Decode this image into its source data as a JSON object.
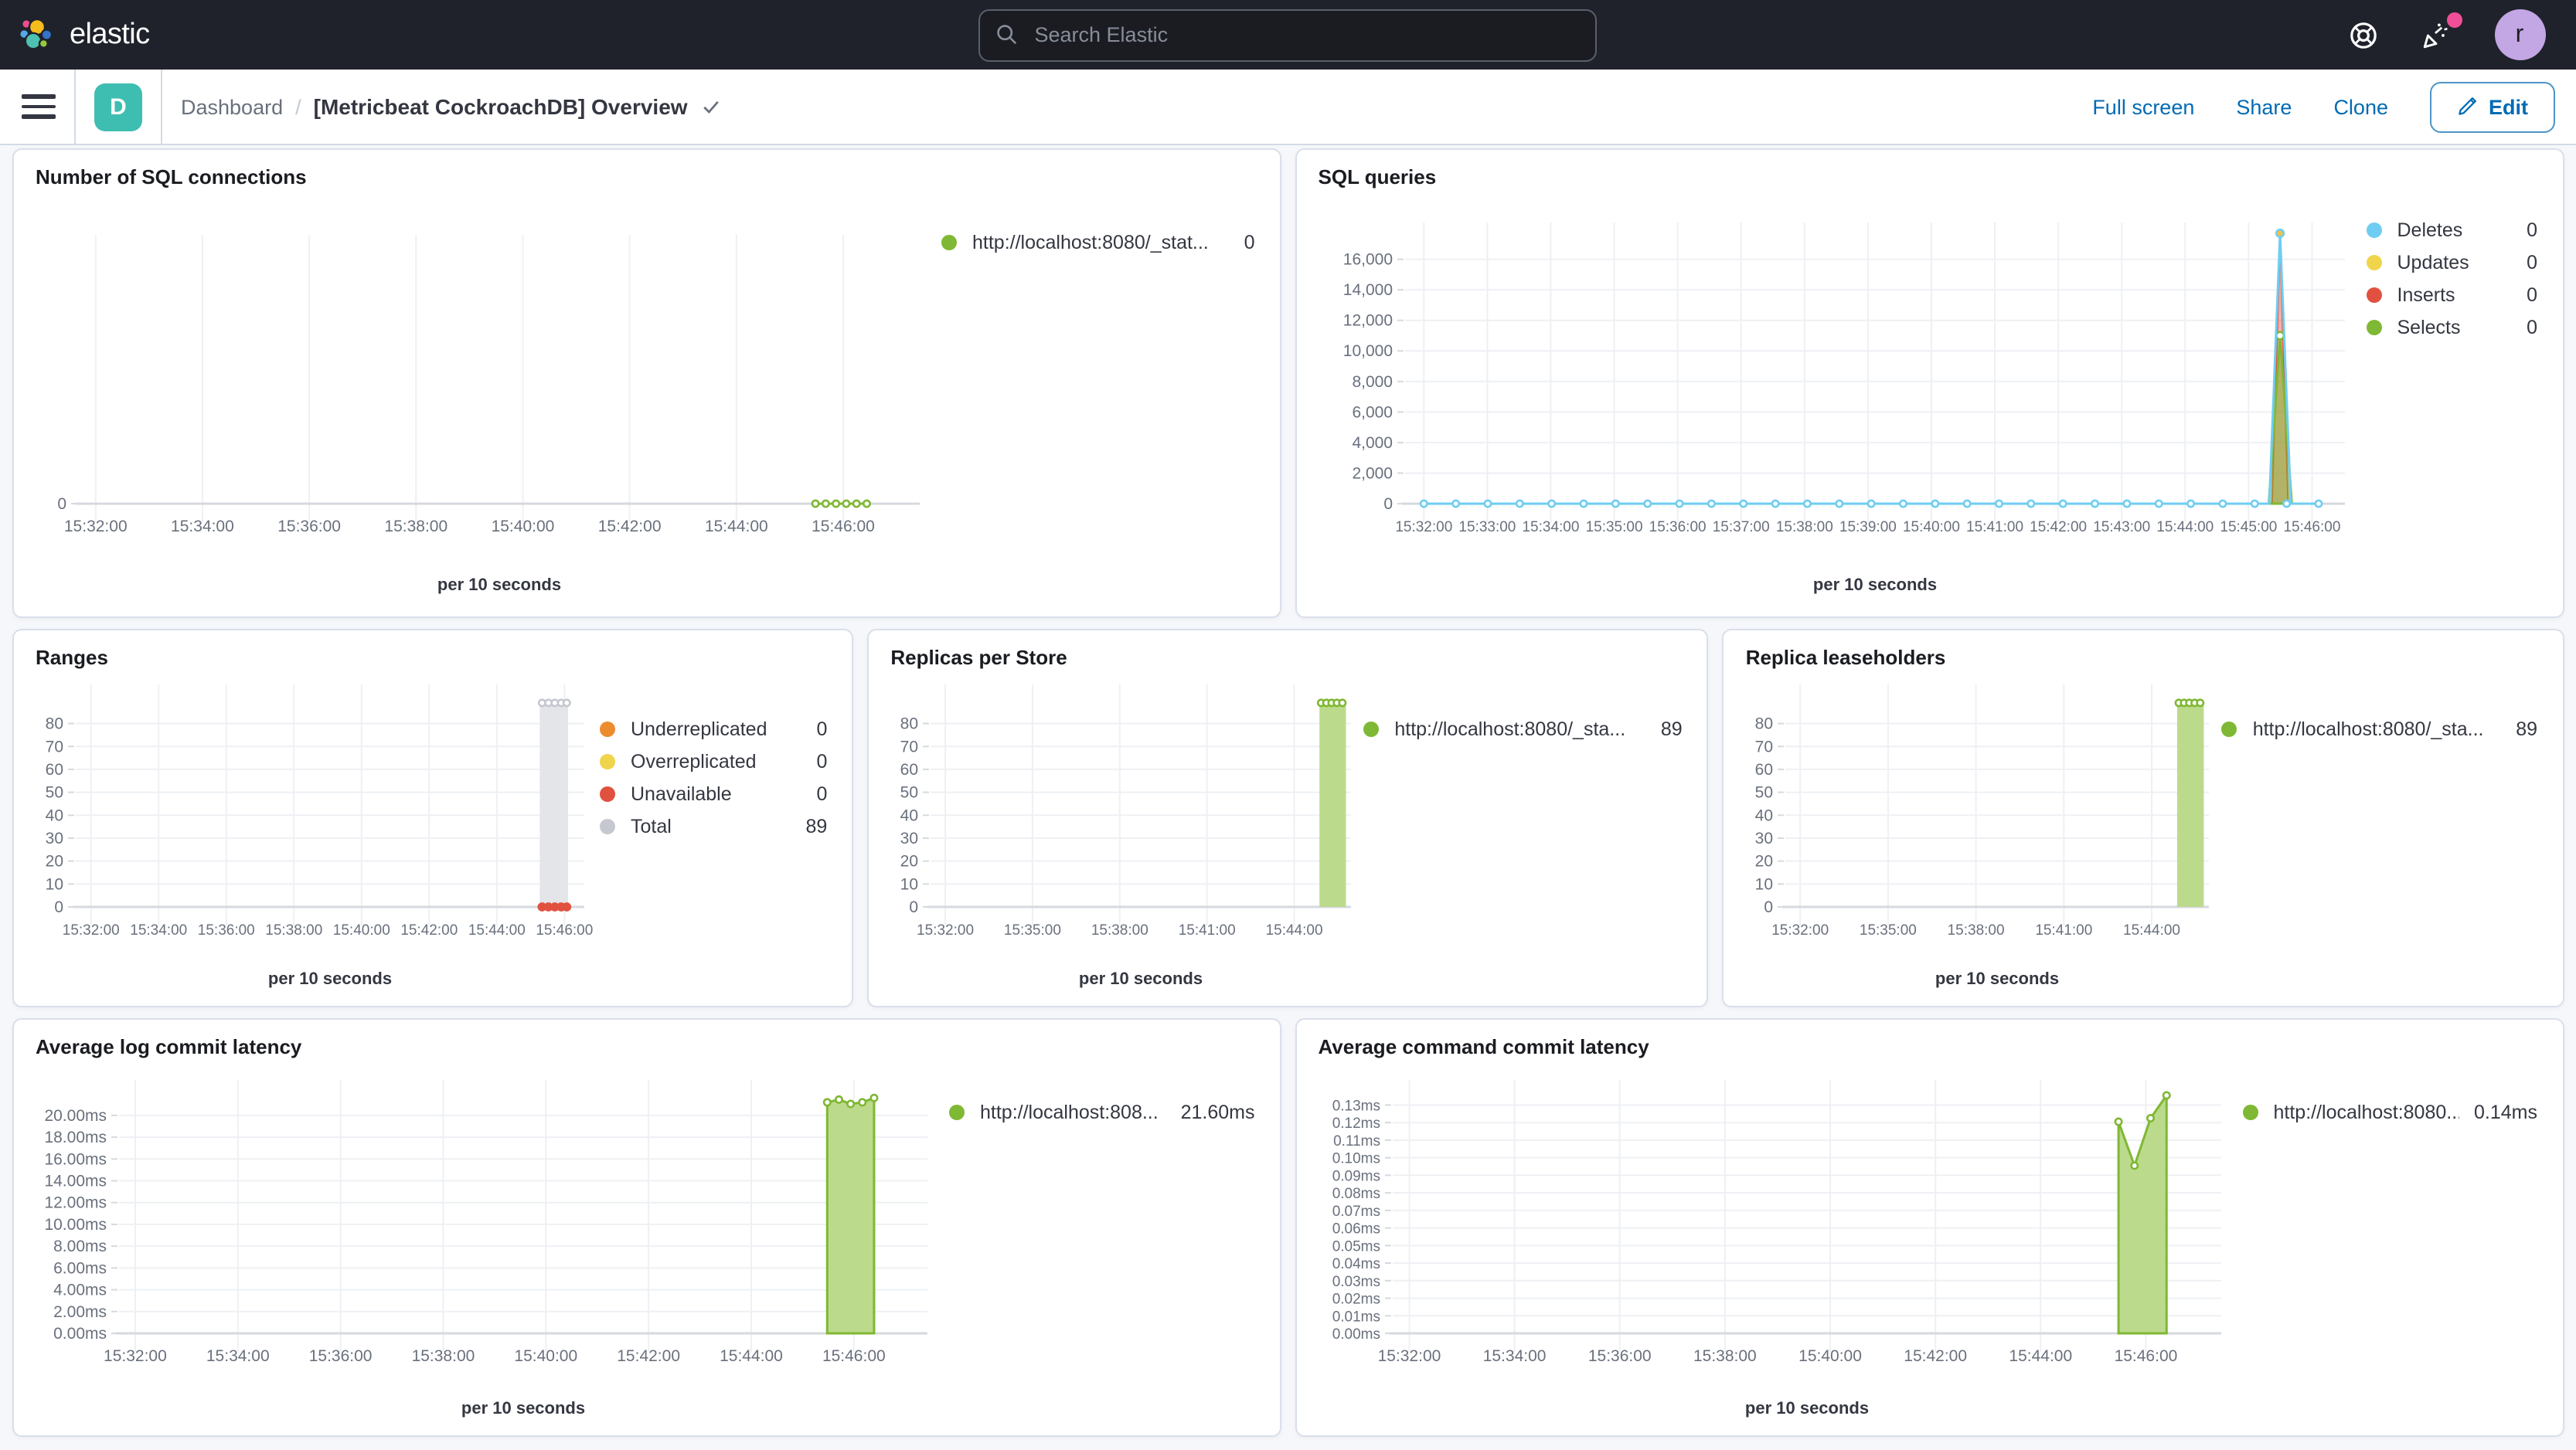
{
  "header": {
    "logo_text": "elastic",
    "search_placeholder": "Search Elastic",
    "avatar_initial": "r",
    "icons": [
      "elastic-logo",
      "search-magnifier",
      "help-life-ring",
      "news-party-popper",
      "user-avatar"
    ]
  },
  "toolbar": {
    "space_badge": "D",
    "breadcrumb_root": "Dashboard",
    "breadcrumb_separator": "/",
    "title": "[Metricbeat CockroachDB] Overview",
    "actions": [
      "Full screen",
      "Share",
      "Clone"
    ],
    "edit_label": "Edit"
  },
  "colors": {
    "header_bg": "#1F222A",
    "accent_blue": "#006BB4",
    "space_badge_teal": "#3EBEB0",
    "notification_pink": "#F04E98",
    "series_green": "#7FB834",
    "series_blue": "#6FCDF2",
    "series_yellow": "#F0D44C",
    "series_red": "#E0523F",
    "series_orange": "#ED8C2D",
    "series_gray": "#C5C8CF"
  },
  "charts": [
    {
      "title": "Number of SQL connections",
      "xlabel": "per 10 seconds",
      "type": "line",
      "x_range": [
        "15:32:00",
        "15:46:00"
      ],
      "legend": [
        {
          "color": "#7FB834",
          "label": "http://localhost:8080/_stat...",
          "value": "0"
        }
      ],
      "ymax": 1,
      "yticks": [
        {
          "v": 0,
          "label": "0"
        }
      ],
      "xticks": [
        {
          "f": 0.02,
          "label": "15:32:00"
        },
        {
          "f": 0.147,
          "label": "15:34:00"
        },
        {
          "f": 0.274,
          "label": "15:36:00"
        },
        {
          "f": 0.401,
          "label": "15:38:00"
        },
        {
          "f": 0.528,
          "label": "15:40:00"
        },
        {
          "f": 0.655,
          "label": "15:42:00"
        },
        {
          "f": 0.782,
          "label": "15:44:00"
        },
        {
          "f": 0.909,
          "label": "15:46:00"
        }
      ],
      "series": [
        {
          "type": "line",
          "stroke": "#7FB834",
          "sw": 1.5,
          "points": [
            [
              0.876,
              0
            ],
            [
              0.937,
              0
            ]
          ],
          "markers": {
            "from": 0.876,
            "to": 0.937,
            "step": 0.0122,
            "v": 0
          },
          "mr": 2.1
        }
      ]
    },
    {
      "title": "SQL queries",
      "xlabel": "per 10 seconds",
      "type": "area",
      "x_range": [
        "15:32:00",
        "15:46:00"
      ],
      "legend": [
        {
          "color": "#6FCDF2",
          "label": "Deletes",
          "value": "0"
        },
        {
          "color": "#F0D44C",
          "label": "Updates",
          "value": "0"
        },
        {
          "color": "#E0523F",
          "label": "Inserts",
          "value": "0"
        },
        {
          "color": "#7FB834",
          "label": "Selects",
          "value": "0"
        }
      ],
      "ymax": 17800,
      "xsmall": true,
      "yticks": [
        {
          "v": 0,
          "label": "0"
        },
        {
          "v": 2000,
          "label": "2,000"
        },
        {
          "v": 4000,
          "label": "4,000"
        },
        {
          "v": 6000,
          "label": "6,000"
        },
        {
          "v": 8000,
          "label": "8,000"
        },
        {
          "v": 10000,
          "label": "10,000"
        },
        {
          "v": 12000,
          "label": "12,000"
        },
        {
          "v": 14000,
          "label": "14,000"
        },
        {
          "v": 16000,
          "label": "16,000"
        }
      ],
      "xticks": [
        {
          "f": 0.02,
          "label": "15:32:00"
        },
        {
          "f": 0.0875,
          "label": "15:33:00"
        },
        {
          "f": 0.155,
          "label": "15:34:00"
        },
        {
          "f": 0.2225,
          "label": "15:35:00"
        },
        {
          "f": 0.29,
          "label": "15:36:00"
        },
        {
          "f": 0.3575,
          "label": "15:37:00"
        },
        {
          "f": 0.425,
          "label": "15:38:00"
        },
        {
          "f": 0.4925,
          "label": "15:39:00"
        },
        {
          "f": 0.56,
          "label": "15:40:00"
        },
        {
          "f": 0.6275,
          "label": "15:41:00"
        },
        {
          "f": 0.695,
          "label": "15:42:00"
        },
        {
          "f": 0.7625,
          "label": "15:43:00"
        },
        {
          "f": 0.83,
          "label": "15:44:00"
        },
        {
          "f": 0.8975,
          "label": "15:45:00"
        },
        {
          "f": 0.965,
          "label": "15:46:00"
        }
      ],
      "series": [
        {
          "type": "area",
          "points": [
            [
              0.9225,
              0
            ],
            [
              0.931,
              17200
            ],
            [
              0.9395,
              0
            ]
          ],
          "fill": "rgba(224,82,64,0.45)",
          "stroke": "#E0523F",
          "sw": 1
        },
        {
          "type": "area",
          "points": [
            [
              0.919,
              0
            ],
            [
              0.931,
              11000
            ],
            [
              0.9435,
              0
            ]
          ],
          "fill": "rgba(125,180,48,0.55)",
          "stroke": "#7FB834",
          "sw": 1.5,
          "markers": [
            [
              0.931,
              11000
            ]
          ],
          "mr": 2.4
        },
        {
          "type": "line",
          "points": [
            [
              0.02,
              0
            ],
            [
              0.9195,
              0
            ],
            [
              0.931,
              17700
            ],
            [
              0.9425,
              0
            ],
            [
              0.975,
              0
            ]
          ],
          "stroke": "#6FCDF2",
          "sw": 1.5,
          "markers": {
            "from": 0.02,
            "to": 0.975,
            "step": 0.034,
            "v": 0
          },
          "mr": 2.1
        },
        {
          "type": "dots",
          "markers": [
            [
              0.931,
              17700
            ]
          ],
          "mstroke": "#6FCDF2",
          "mfill": "#F5C13C",
          "mr": 2.4
        }
      ]
    },
    {
      "title": "Ranges",
      "xlabel": "per 10 seconds",
      "type": "bar",
      "x_range": [
        "15:32:00",
        "15:46:00"
      ],
      "legend": [
        {
          "color": "#ED8C2D",
          "label": "Underreplicated",
          "value": "0"
        },
        {
          "color": "#F0D44C",
          "label": "Overreplicated",
          "value": "0"
        },
        {
          "color": "#E0523F",
          "label": "Unavailable",
          "value": "0"
        },
        {
          "color": "#C5C8CF",
          "label": "Total",
          "value": "89"
        }
      ],
      "ymax": 93,
      "xsmall": true,
      "yticks": [
        {
          "v": 0,
          "label": "0"
        },
        {
          "v": 10,
          "label": "10"
        },
        {
          "v": 20,
          "label": "20"
        },
        {
          "v": 30,
          "label": "30"
        },
        {
          "v": 40,
          "label": "40"
        },
        {
          "v": 50,
          "label": "50"
        },
        {
          "v": 60,
          "label": "60"
        },
        {
          "v": 70,
          "label": "70"
        },
        {
          "v": 80,
          "label": "80"
        }
      ],
      "xticks": [
        {
          "f": 0.03,
          "label": "15:32:00"
        },
        {
          "f": 0.163,
          "label": "15:34:00"
        },
        {
          "f": 0.296,
          "label": "15:36:00"
        },
        {
          "f": 0.429,
          "label": "15:38:00"
        },
        {
          "f": 0.562,
          "label": "15:40:00"
        },
        {
          "f": 0.695,
          "label": "15:42:00"
        },
        {
          "f": 0.828,
          "label": "15:44:00"
        },
        {
          "f": 0.961,
          "label": "15:46:00"
        }
      ],
      "series": [
        {
          "type": "bar",
          "f0": 0.9125,
          "f1": 0.968,
          "v": 89,
          "fill": "#E4E5E9"
        },
        {
          "type": "dots",
          "markers": [
            [
              0.917,
              89
            ],
            [
              0.9295,
              89
            ],
            [
              0.942,
              89
            ],
            [
              0.9545,
              89
            ],
            [
              0.9655,
              89
            ]
          ],
          "mstroke": "#C5C8CF",
          "mfill": "#FFFFFF",
          "mr": 2.1
        },
        {
          "type": "dots",
          "markers": [
            [
              0.917,
              0
            ],
            [
              0.9295,
              0
            ],
            [
              0.942,
              0
            ],
            [
              0.9545,
              0
            ],
            [
              0.9655,
              0
            ]
          ],
          "mstroke": "#E0523F",
          "mfill": "#E0523F",
          "mr": 2.3
        }
      ]
    },
    {
      "title": "Replicas per Store",
      "xlabel": "per 10 seconds",
      "type": "bar",
      "x_range": [
        "15:32:00",
        "15:46:00"
      ],
      "legend": [
        {
          "color": "#7FB834",
          "label": "http://localhost:8080/_sta...",
          "value": "89"
        }
      ],
      "ymax": 93,
      "xsmall": true,
      "yticks": [
        {
          "v": 0,
          "label": "0"
        },
        {
          "v": 10,
          "label": "10"
        },
        {
          "v": 20,
          "label": "20"
        },
        {
          "v": 30,
          "label": "30"
        },
        {
          "v": 40,
          "label": "40"
        },
        {
          "v": 50,
          "label": "50"
        },
        {
          "v": 60,
          "label": "60"
        },
        {
          "v": 70,
          "label": "70"
        },
        {
          "v": 80,
          "label": "80"
        }
      ],
      "xticks": [
        {
          "f": 0.035,
          "label": "15:32:00"
        },
        {
          "f": 0.2425,
          "label": "15:35:00"
        },
        {
          "f": 0.45,
          "label": "15:38:00"
        },
        {
          "f": 0.6575,
          "label": "15:41:00"
        },
        {
          "f": 0.865,
          "label": "15:44:00"
        }
      ],
      "series": [
        {
          "type": "bar",
          "f0": 0.925,
          "f1": 0.988,
          "v": 89,
          "fill": "#BCDA8C"
        },
        {
          "type": "dots",
          "markers": [
            [
              0.929,
              89
            ],
            [
              0.9415,
              89
            ],
            [
              0.954,
              89
            ],
            [
              0.9665,
              89
            ],
            [
              0.9795,
              89
            ]
          ],
          "mstroke": "#7FB834",
          "mfill": "#FFFFFF",
          "mr": 2.1
        }
      ]
    },
    {
      "title": "Replica leaseholders",
      "xlabel": "per 10 seconds",
      "type": "bar",
      "x_range": [
        "15:32:00",
        "15:46:00"
      ],
      "legend": [
        {
          "color": "#7FB834",
          "label": "http://localhost:8080/_sta...",
          "value": "89"
        }
      ],
      "ymax": 93,
      "xsmall": true,
      "yticks": [
        {
          "v": 0,
          "label": "0"
        },
        {
          "v": 10,
          "label": "10"
        },
        {
          "v": 20,
          "label": "20"
        },
        {
          "v": 30,
          "label": "30"
        },
        {
          "v": 40,
          "label": "40"
        },
        {
          "v": 50,
          "label": "50"
        },
        {
          "v": 60,
          "label": "60"
        },
        {
          "v": 70,
          "label": "70"
        },
        {
          "v": 80,
          "label": "80"
        }
      ],
      "xticks": [
        {
          "f": 0.035,
          "label": "15:32:00"
        },
        {
          "f": 0.2425,
          "label": "15:35:00"
        },
        {
          "f": 0.45,
          "label": "15:38:00"
        },
        {
          "f": 0.6575,
          "label": "15:41:00"
        },
        {
          "f": 0.865,
          "label": "15:44:00"
        }
      ],
      "series": [
        {
          "type": "bar",
          "f0": 0.925,
          "f1": 0.988,
          "v": 89,
          "fill": "#BCDA8C"
        },
        {
          "type": "dots",
          "markers": [
            [
              0.929,
              89
            ],
            [
              0.9415,
              89
            ],
            [
              0.954,
              89
            ],
            [
              0.9665,
              89
            ],
            [
              0.9795,
              89
            ]
          ],
          "mstroke": "#7FB834",
          "mfill": "#FFFFFF",
          "mr": 2.1
        }
      ]
    },
    {
      "title": "Average log commit latency",
      "xlabel": "per 10 seconds",
      "type": "area",
      "x_range": [
        "15:32:00",
        "15:46:00"
      ],
      "legend": [
        {
          "color": "#7FB834",
          "label": "http://localhost:808...",
          "value": "21.60ms"
        }
      ],
      "ymax": 22.4,
      "yticks": [
        {
          "v": 0,
          "label": "0.00ms"
        },
        {
          "v": 2,
          "label": "2.00ms"
        },
        {
          "v": 4,
          "label": "4.00ms"
        },
        {
          "v": 6,
          "label": "6.00ms"
        },
        {
          "v": 8,
          "label": "8.00ms"
        },
        {
          "v": 10,
          "label": "10.00ms"
        },
        {
          "v": 12,
          "label": "12.00ms"
        },
        {
          "v": 14,
          "label": "14.00ms"
        },
        {
          "v": 16,
          "label": "16.00ms"
        },
        {
          "v": 18,
          "label": "18.00ms"
        },
        {
          "v": 20,
          "label": "20.00ms"
        }
      ],
      "xticks": [
        {
          "f": 0.02,
          "label": "15:32:00"
        },
        {
          "f": 0.147,
          "label": "15:34:00"
        },
        {
          "f": 0.274,
          "label": "15:36:00"
        },
        {
          "f": 0.401,
          "label": "15:38:00"
        },
        {
          "f": 0.528,
          "label": "15:40:00"
        },
        {
          "f": 0.655,
          "label": "15:42:00"
        },
        {
          "f": 0.782,
          "label": "15:44:00"
        },
        {
          "f": 0.909,
          "label": "15:46:00"
        }
      ],
      "series": [
        {
          "type": "area",
          "points": [
            [
              0.876,
              21.2
            ],
            [
              0.8905,
              21.45
            ],
            [
              0.905,
              21.05
            ],
            [
              0.9195,
              21.2
            ],
            [
              0.934,
              21.6
            ]
          ],
          "fill": "#BCDA8C",
          "stroke": "#7FB834",
          "sw": 1.5,
          "markers": [
            [
              0.876,
              21.2
            ],
            [
              0.8905,
              21.45
            ],
            [
              0.905,
              21.05
            ],
            [
              0.9195,
              21.2
            ],
            [
              0.934,
              21.6
            ]
          ],
          "mr": 2.1
        }
      ]
    },
    {
      "title": "Average command commit latency",
      "xlabel": "per 10 seconds",
      "type": "area",
      "x_range": [
        "15:32:00",
        "15:46:00"
      ],
      "legend": [
        {
          "color": "#7FB834",
          "label": "http://localhost:8080...",
          "value": "0.14ms"
        }
      ],
      "ymax": 0.139,
      "ysmall": true,
      "yticks": [
        {
          "v": 0,
          "label": "0.00ms"
        },
        {
          "v": 0.01,
          "label": "0.01ms"
        },
        {
          "v": 0.02,
          "label": "0.02ms"
        },
        {
          "v": 0.03,
          "label": "0.03ms"
        },
        {
          "v": 0.04,
          "label": "0.04ms"
        },
        {
          "v": 0.05,
          "label": "0.05ms"
        },
        {
          "v": 0.06,
          "label": "0.06ms"
        },
        {
          "v": 0.07,
          "label": "0.07ms"
        },
        {
          "v": 0.08,
          "label": "0.08ms"
        },
        {
          "v": 0.09,
          "label": "0.09ms"
        },
        {
          "v": 0.1,
          "label": "0.10ms"
        },
        {
          "v": 0.11,
          "label": "0.11ms"
        },
        {
          "v": 0.12,
          "label": "0.12ms"
        },
        {
          "v": 0.13,
          "label": "0.13ms"
        }
      ],
      "xticks": [
        {
          "f": 0.02,
          "label": "15:32:00"
        },
        {
          "f": 0.147,
          "label": "15:34:00"
        },
        {
          "f": 0.274,
          "label": "15:36:00"
        },
        {
          "f": 0.401,
          "label": "15:38:00"
        },
        {
          "f": 0.528,
          "label": "15:40:00"
        },
        {
          "f": 0.655,
          "label": "15:42:00"
        },
        {
          "f": 0.782,
          "label": "15:44:00"
        },
        {
          "f": 0.909,
          "label": "15:46:00"
        }
      ],
      "series": [
        {
          "type": "area",
          "points": [
            [
              0.876,
              0.1205
            ],
            [
              0.8953,
              0.0955
            ],
            [
              0.9147,
              0.1225
            ],
            [
              0.934,
              0.1355
            ]
          ],
          "fill": "#BCDA8C",
          "stroke": "#7FB834",
          "sw": 1.5,
          "markers": [
            [
              0.876,
              0.1205
            ],
            [
              0.8953,
              0.0955
            ],
            [
              0.9147,
              0.1225
            ],
            [
              0.934,
              0.1355
            ]
          ],
          "mr": 2.1
        }
      ]
    }
  ]
}
